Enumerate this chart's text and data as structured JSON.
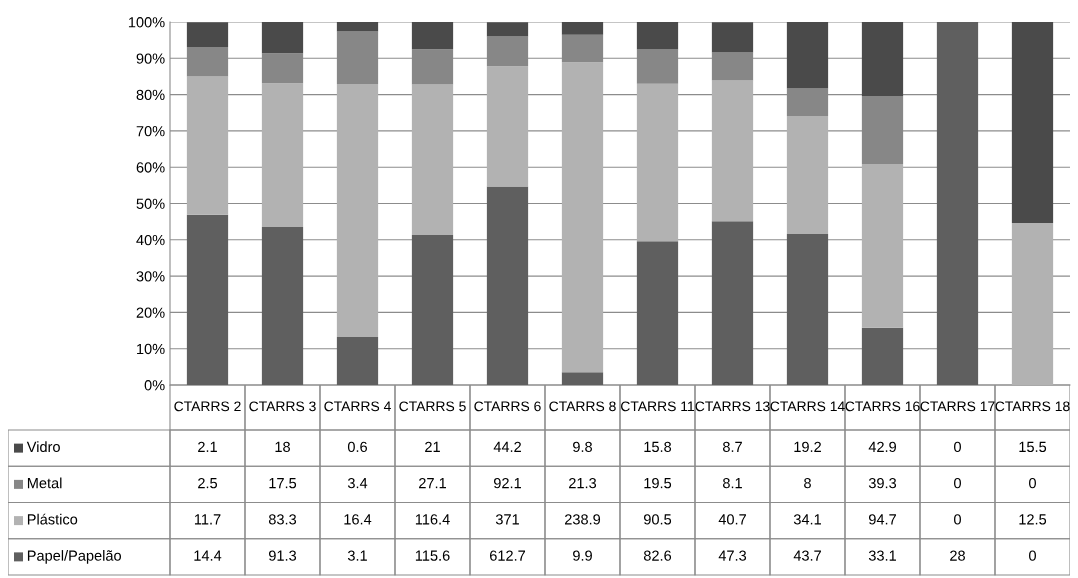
{
  "chart_data": {
    "type": "bar",
    "stacked": true,
    "categories": [
      "CTARRS 2",
      "CTARRS 3",
      "CTARRS 4",
      "CTARRS 5",
      "CTARRS 6",
      "CTARRS 8",
      "CTARRS 11",
      "CTARRS 13",
      "CTARRS 14",
      "CTARRS 16",
      "CTARRS 17",
      "CTARRS 18"
    ],
    "series": [
      {
        "name": "Papel/Papelão",
        "color": "#5f5f5f",
        "values": [
          46.9,
          43.5,
          13.2,
          41.3,
          54.7,
          3.5,
          39.6,
          45.1,
          41.6,
          15.8,
          100,
          0
        ]
      },
      {
        "name": "Plástico",
        "color": "#b2b2b2",
        "values": [
          38.1,
          39.6,
          69.7,
          41.5,
          33.1,
          85.4,
          43.4,
          38.8,
          32.5,
          45.1,
          0,
          44.6
        ]
      },
      {
        "name": "Metal",
        "color": "#878787",
        "values": [
          8.1,
          8.3,
          14.5,
          9.7,
          8.2,
          7.6,
          9.4,
          7.7,
          7.6,
          18.7,
          0,
          0
        ]
      },
      {
        "name": "Vidro",
        "color": "#4a4a4a",
        "values": [
          6.8,
          8.6,
          2.6,
          7.5,
          3.9,
          3.5,
          7.6,
          8.3,
          18.3,
          20.4,
          0,
          55.4
        ]
      }
    ],
    "annotations": [
      "2.1",
      "18",
      "0.6",
      "21",
      "44.2",
      "9.8",
      "15.8",
      "8.7",
      "19.2",
      "42.9",
      "0",
      "15.5",
      "2.5",
      "17.5",
      "3.4",
      "27.1",
      "92.1",
      "21.3",
      "19.5",
      "8.1",
      "8",
      "39.3",
      "0",
      "0",
      "11.7",
      "83.3",
      "16.4",
      "116.4",
      "371",
      "238.9",
      "90.5",
      "40.7",
      "34.1",
      "94.7",
      "0",
      "12.5",
      "14.4",
      "91.3",
      "3.1",
      "115.6",
      "612.7",
      "9.9",
      "82.6",
      "47.3",
      "43.7",
      "33.1",
      "28",
      "0"
    ],
    "ylim": [
      0,
      100
    ],
    "yticks": [
      {
        "value": 0,
        "label": "0%"
      },
      {
        "value": 10,
        "label": "10%"
      },
      {
        "value": 20,
        "label": "20%"
      },
      {
        "value": 30,
        "label": "30%"
      },
      {
        "value": 40,
        "label": "40%"
      },
      {
        "value": 50,
        "label": "50%"
      },
      {
        "value": 60,
        "label": "60%"
      },
      {
        "value": 70,
        "label": "70%"
      },
      {
        "value": 80,
        "label": "80%"
      },
      {
        "value": 90,
        "label": "90%"
      },
      {
        "value": 100,
        "label": "100%"
      }
    ],
    "grid": "y",
    "legend": "bottom left"
  }
}
